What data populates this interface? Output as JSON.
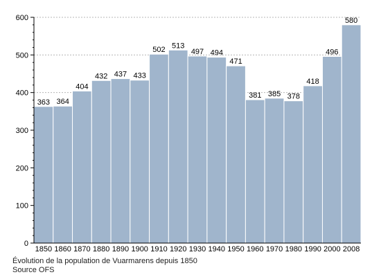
{
  "chart_data": {
    "type": "bar",
    "categories": [
      "1850",
      "1860",
      "1870",
      "1880",
      "1890",
      "1900",
      "1910",
      "1920",
      "1930",
      "1940",
      "1950",
      "1960",
      "1970",
      "1980",
      "1990",
      "2000",
      "2008"
    ],
    "values": [
      363,
      364,
      404,
      432,
      437,
      433,
      502,
      513,
      497,
      494,
      471,
      381,
      385,
      378,
      418,
      496,
      580
    ],
    "data_labels": [
      "363",
      "364",
      "404",
      "432",
      "437",
      "433",
      "502",
      "513",
      "497",
      "494",
      "471",
      "381",
      "385",
      "378",
      "418",
      "496",
      "580"
    ],
    "title": "",
    "xlabel": "",
    "ylabel": "",
    "ylim": [
      0,
      600
    ],
    "yticks": [
      0,
      100,
      200,
      300,
      400,
      500,
      600
    ],
    "ytick_labels": [
      "0",
      "100",
      "200",
      "300",
      "400",
      "500",
      "600"
    ],
    "grid": true,
    "legend": "none",
    "bar_color": "#a0b5cc",
    "bar_edge_color": "#ffffff"
  },
  "caption": {
    "line1": "Évolution de la population de Vuarmarens depuis 1850",
    "line2": "Source OFS"
  }
}
